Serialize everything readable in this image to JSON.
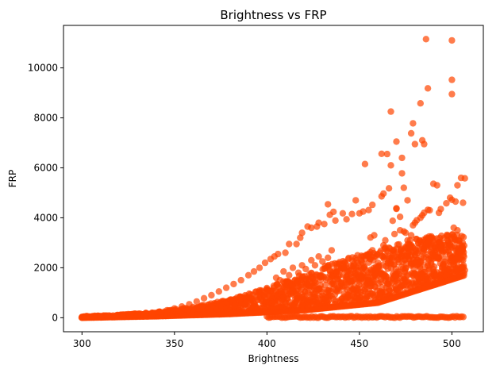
{
  "chart_data": {
    "type": "scatter",
    "title": "Brightness vs FRP",
    "xlabel": "Brightness",
    "ylabel": "FRP",
    "xlim": [
      290,
      517
    ],
    "ylim": [
      -560,
      11700
    ],
    "x_ticks": [
      300,
      350,
      400,
      450,
      500
    ],
    "y_ticks": [
      0,
      2000,
      4000,
      6000,
      8000,
      10000
    ],
    "grid": false,
    "legend": "none",
    "marker_color": "#FF4500",
    "marker_opacity": 0.7,
    "series": [
      {
        "points": [
          [
            486,
            11150
          ],
          [
            500,
            11100
          ],
          [
            500,
            9520
          ],
          [
            487,
            9180
          ],
          [
            500,
            8950
          ],
          [
            483,
            8580
          ],
          [
            467,
            8250
          ],
          [
            479,
            7780
          ],
          [
            470,
            7050
          ],
          [
            480,
            6950
          ],
          [
            478,
            7380
          ],
          [
            484,
            7100
          ],
          [
            485,
            6950
          ],
          [
            473,
            6400
          ],
          [
            462,
            6560
          ],
          [
            465,
            6550
          ],
          [
            453,
            6150
          ],
          [
            467,
            6100
          ],
          [
            473,
            5780
          ],
          [
            490,
            5360
          ],
          [
            492,
            5300
          ],
          [
            505,
            5600
          ],
          [
            507,
            5580
          ],
          [
            503,
            5300
          ],
          [
            466,
            5180
          ],
          [
            462,
            4860
          ],
          [
            457,
            4520
          ],
          [
            463,
            4970
          ],
          [
            474,
            5200
          ],
          [
            476,
            4700
          ],
          [
            499,
            4800
          ],
          [
            500,
            4720
          ],
          [
            502,
            4650
          ],
          [
            506,
            4600
          ],
          [
            497,
            4580
          ],
          [
            494,
            4350
          ],
          [
            487,
            4320
          ],
          [
            488,
            4300
          ],
          [
            493,
            4200
          ],
          [
            485,
            4200
          ],
          [
            484,
            4100
          ],
          [
            483,
            4000
          ],
          [
            481,
            3900
          ],
          [
            480,
            3800
          ],
          [
            479,
            3700
          ],
          [
            470,
            4380
          ],
          [
            470,
            4360
          ],
          [
            472,
            4040
          ],
          [
            468,
            3880
          ],
          [
            475,
            3400
          ],
          [
            464,
            3100
          ],
          [
            458,
            3300
          ],
          [
            456,
            3210
          ],
          [
            450,
            4180
          ],
          [
            452,
            4250
          ],
          [
            455,
            4310
          ],
          [
            448,
            4700
          ],
          [
            441,
            4180
          ],
          [
            443,
            3940
          ],
          [
            437,
            3890
          ],
          [
            434,
            4120
          ],
          [
            436,
            4240
          ],
          [
            433,
            4540
          ],
          [
            446,
            4150
          ],
          [
            428,
            3800
          ],
          [
            431,
            3750
          ],
          [
            427,
            3650
          ],
          [
            424,
            3600
          ],
          [
            422,
            3650
          ],
          [
            419,
            3400
          ],
          [
            418,
            3200
          ],
          [
            416,
            2950
          ],
          [
            412,
            2950
          ],
          [
            410,
            2600
          ],
          [
            406,
            2550
          ],
          [
            404,
            2450
          ],
          [
            402,
            2350
          ],
          [
            399,
            2200
          ],
          [
            396,
            2000
          ],
          [
            393,
            1850
          ],
          [
            390,
            1700
          ],
          [
            386,
            1500
          ],
          [
            382,
            1350
          ],
          [
            378,
            1200
          ],
          [
            374,
            1050
          ],
          [
            370,
            900
          ],
          [
            366,
            780
          ],
          [
            362,
            650
          ],
          [
            358,
            540
          ],
          [
            354,
            450
          ],
          [
            350,
            370
          ],
          [
            346,
            300
          ],
          [
            342,
            240
          ],
          [
            338,
            190
          ],
          [
            334,
            150
          ],
          [
            330,
            115
          ],
          [
            326,
            90
          ],
          [
            322,
            70
          ],
          [
            318,
            55
          ],
          [
            314,
            45
          ],
          [
            310,
            38
          ],
          [
            306,
            32
          ],
          [
            302,
            28
          ],
          [
            505,
            2700
          ],
          [
            506,
            2300
          ],
          [
            507,
            1900
          ],
          [
            504,
            3100
          ],
          [
            503,
            3500
          ],
          [
            501,
            3600
          ],
          [
            498,
            3000
          ],
          [
            496,
            2900
          ],
          [
            494,
            2800
          ],
          [
            491,
            2500
          ],
          [
            489,
            2700
          ],
          [
            486,
            2900
          ],
          [
            482,
            3000
          ],
          [
            480,
            2500
          ],
          [
            478,
            3300
          ],
          [
            476,
            3100
          ],
          [
            474,
            3450
          ],
          [
            472,
            3500
          ],
          [
            469,
            3350
          ],
          [
            466,
            2800
          ],
          [
            463,
            2900
          ],
          [
            461,
            2600
          ],
          [
            459,
            2450
          ],
          [
            457,
            2700
          ],
          [
            454,
            2500
          ],
          [
            451,
            2300
          ],
          [
            449,
            2500
          ],
          [
            447,
            2150
          ],
          [
            444,
            2350
          ],
          [
            442,
            2000
          ],
          [
            439,
            2150
          ],
          [
            437,
            1900
          ],
          [
            435,
            2700
          ],
          [
            433,
            2400
          ],
          [
            430,
            2250
          ],
          [
            428,
            2450
          ],
          [
            426,
            2100
          ],
          [
            424,
            2300
          ],
          [
            421,
            1950
          ],
          [
            419,
            2100
          ],
          [
            417,
            1800
          ],
          [
            414,
            2000
          ],
          [
            412,
            1700
          ],
          [
            409,
            1850
          ],
          [
            407,
            1500
          ],
          [
            405,
            1600
          ]
        ]
      }
    ],
    "band": {
      "x_min": 300,
      "x_max": 507,
      "note_upper_frp_at_x": [
        [
          300,
          60
        ],
        [
          320,
          120
        ],
        [
          340,
          230
        ],
        [
          360,
          430
        ],
        [
          380,
          730
        ],
        [
          400,
          1200
        ],
        [
          420,
          1750
        ],
        [
          440,
          2300
        ],
        [
          460,
          2750
        ],
        [
          480,
          3200
        ],
        [
          507,
          3400
        ]
      ],
      "note_lower_frp_at_x": [
        [
          300,
          0
        ],
        [
          340,
          60
        ],
        [
          380,
          150
        ],
        [
          420,
          300
        ],
        [
          460,
          600
        ],
        [
          507,
          1700
        ]
      ],
      "baseline_x_range": [
        400,
        507
      ],
      "baseline_frp": [
        0,
        60
      ]
    }
  }
}
